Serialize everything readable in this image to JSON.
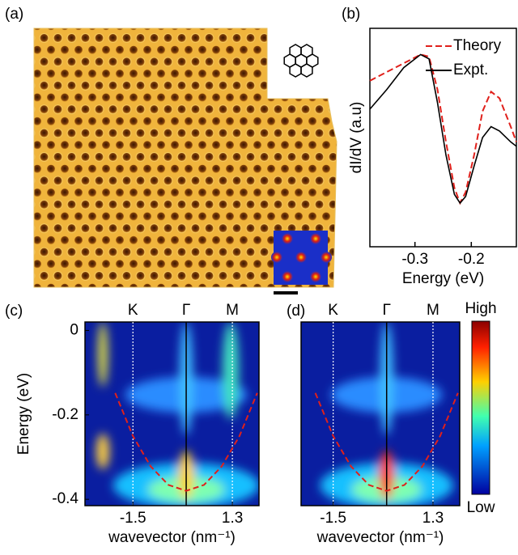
{
  "chart_data": [
    {
      "type": "image",
      "label": "(a)"
    },
    {
      "type": "line",
      "label": "(b)",
      "xlabel": "Energy (eV)",
      "ylabel": "dI/dV (a.u)",
      "xlim": [
        -0.38,
        -0.12
      ],
      "xticks": [
        -0.3,
        -0.2
      ],
      "ylim": [
        0,
        1
      ],
      "legend": "upper right",
      "series": [
        {
          "name": "Theory",
          "color": "#e0201b",
          "dash": true,
          "x": [
            -0.38,
            -0.35,
            -0.32,
            -0.29,
            -0.275,
            -0.26,
            -0.245,
            -0.23,
            -0.22,
            -0.21,
            -0.195,
            -0.18,
            -0.165,
            -0.15,
            -0.13,
            -0.12
          ],
          "values": [
            0.76,
            0.8,
            0.84,
            0.88,
            0.87,
            0.72,
            0.48,
            0.27,
            0.2,
            0.25,
            0.42,
            0.62,
            0.71,
            0.68,
            0.55,
            0.48
          ]
        },
        {
          "name": "Expt.",
          "color": "#000000",
          "dash": false,
          "x": [
            -0.38,
            -0.35,
            -0.32,
            -0.29,
            -0.275,
            -0.26,
            -0.245,
            -0.23,
            -0.22,
            -0.21,
            -0.195,
            -0.18,
            -0.165,
            -0.15,
            -0.13,
            -0.12
          ],
          "values": [
            0.63,
            0.72,
            0.82,
            0.88,
            0.86,
            0.66,
            0.42,
            0.24,
            0.2,
            0.23,
            0.37,
            0.5,
            0.55,
            0.53,
            0.48,
            0.46
          ]
        }
      ]
    },
    {
      "type": "heatmap",
      "label": "(c)",
      "xlabel": "wavevector (nm⁻¹)",
      "ylabel": "Energy (eV)",
      "xlim": [
        -2.85,
        2.05
      ],
      "xticks": [
        -1.5,
        1.3
      ],
      "ylim": [
        -0.415,
        0.02
      ],
      "yticks": [
        0,
        -0.2,
        -0.4
      ],
      "symmetry_points": {
        "labels": [
          "K",
          "Γ",
          "M"
        ],
        "values": [
          -1.5,
          0,
          1.3
        ]
      },
      "fit": {
        "color": "#e0201b",
        "x": [
          -2,
          -1.5,
          -1,
          -0.5,
          0,
          0.5,
          1,
          1.5,
          2
        ],
        "values": [
          -0.148,
          -0.25,
          -0.322,
          -0.366,
          -0.38,
          -0.366,
          -0.322,
          -0.25,
          -0.148
        ]
      }
    },
    {
      "type": "heatmap",
      "label": "(d)",
      "xlabel": "wavevector (nm⁻¹)",
      "xlim": [
        -2.4,
        2.05
      ],
      "xticks": [
        -1.5,
        1.3
      ],
      "ylim": [
        -0.415,
        0.02
      ],
      "symmetry_points": {
        "labels": [
          "K",
          "Γ",
          "M"
        ],
        "values": [
          -1.5,
          0,
          1.3
        ]
      },
      "fit": {
        "color": "#e0201b",
        "x": [
          -2,
          -1.5,
          -1,
          -0.5,
          0,
          0.5,
          1,
          1.5,
          2
        ],
        "values": [
          -0.148,
          -0.25,
          -0.322,
          -0.366,
          -0.38,
          -0.366,
          -0.322,
          -0.25,
          -0.148
        ]
      },
      "colorbar": [
        "High",
        "Low"
      ]
    }
  ]
}
